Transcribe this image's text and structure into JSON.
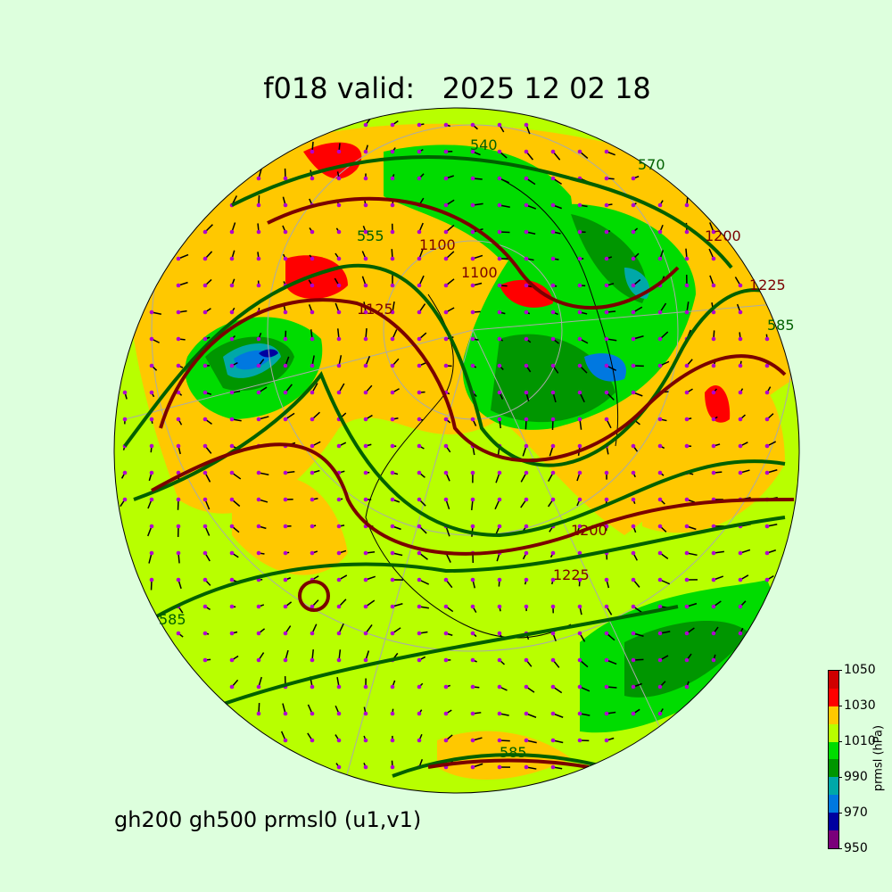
{
  "title": "f018 valid:   2025 12 02 18",
  "footer": "gh200 gh500 prmsl0 (u1,v1)",
  "colorbar": {
    "label": "prmsl (hPa)",
    "ticks": [
      "1050",
      "1030",
      "1010",
      "990",
      "970",
      "950"
    ],
    "bounds": [
      950,
      960,
      970,
      980,
      990,
      1000,
      1010,
      1020,
      1030,
      1040,
      1050
    ],
    "colors": [
      "#7a007a",
      "#0000a0",
      "#0078e0",
      "#00a8a8",
      "#009600",
      "#00dc00",
      "#b8ff00",
      "#ffc800",
      "#ff0000",
      "#d00000"
    ]
  },
  "contour_labels": {
    "gh500": [
      "540",
      "570",
      "585",
      "585",
      "585",
      "555"
    ],
    "gh200": [
      "1100",
      "1100",
      "1125",
      "1200",
      "1225",
      "1225",
      "1200"
    ]
  },
  "colors": {
    "gh500": "#006000",
    "gh200": "#7a0000",
    "wind": "#b000d0",
    "background": "#ddffdd"
  }
}
